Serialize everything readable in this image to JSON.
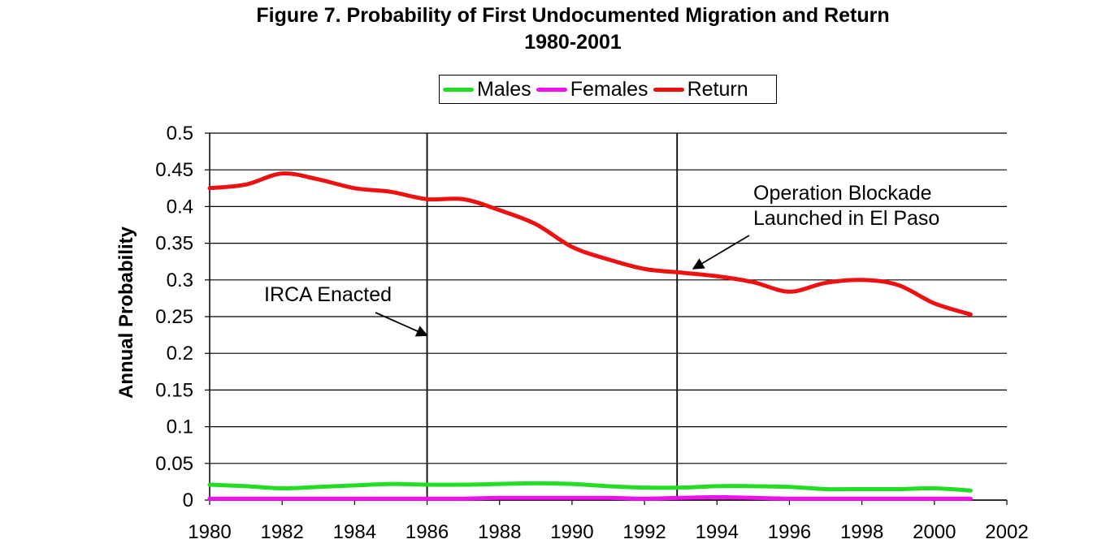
{
  "chart_data": {
    "type": "line",
    "title": "Figure 7.  Probability of First Undocumented Migration and Return",
    "subtitle": "1980-2001",
    "xlabel": "",
    "ylabel": "Annual Probability",
    "xlim": [
      1980,
      2002
    ],
    "ylim": [
      0,
      0.5
    ],
    "xticks": [
      "1980",
      "1982",
      "1984",
      "1986",
      "1988",
      "1990",
      "1992",
      "1994",
      "1996",
      "1998",
      "2000",
      "2002"
    ],
    "yticks": [
      "0",
      "0.05",
      "0.1",
      "0.15",
      "0.2",
      "0.25",
      "0.3",
      "0.35",
      "0.4",
      "0.45",
      "0.5"
    ],
    "grid": "horizontal",
    "legend_position": "top",
    "x": [
      1980,
      1981,
      1982,
      1983,
      1984,
      1985,
      1986,
      1987,
      1988,
      1989,
      1990,
      1991,
      1992,
      1993,
      1994,
      1995,
      1996,
      1997,
      1998,
      1999,
      2000,
      2001
    ],
    "series": [
      {
        "name": "Males",
        "color": "#22dd22",
        "values": [
          0.021,
          0.019,
          0.016,
          0.018,
          0.02,
          0.022,
          0.021,
          0.021,
          0.022,
          0.023,
          0.022,
          0.019,
          0.017,
          0.017,
          0.019,
          0.019,
          0.018,
          0.015,
          0.015,
          0.015,
          0.016,
          0.013
        ]
      },
      {
        "name": "Females",
        "color": "#ee11ee",
        "values": [
          0.002,
          0.002,
          0.002,
          0.002,
          0.002,
          0.002,
          0.002,
          0.002,
          0.003,
          0.003,
          0.003,
          0.003,
          0.002,
          0.003,
          0.004,
          0.003,
          0.002,
          0.002,
          0.002,
          0.002,
          0.002,
          0.002
        ]
      },
      {
        "name": "Return",
        "color": "#ee1111",
        "values": [
          0.425,
          0.43,
          0.445,
          0.437,
          0.425,
          0.42,
          0.41,
          0.41,
          0.395,
          0.376,
          0.345,
          0.328,
          0.315,
          0.31,
          0.305,
          0.297,
          0.284,
          0.296,
          0.3,
          0.293,
          0.268,
          0.253
        ]
      }
    ],
    "vertical_markers": [
      1986,
      1992.9
    ],
    "annotations": [
      {
        "lines": [
          "IRCA Enacted"
        ],
        "arrow_to": [
          1986,
          0.22
        ]
      },
      {
        "lines": [
          "Operation Blockade",
          "Launched in El Paso"
        ],
        "arrow_to": [
          1993.5,
          0.315
        ]
      }
    ]
  }
}
